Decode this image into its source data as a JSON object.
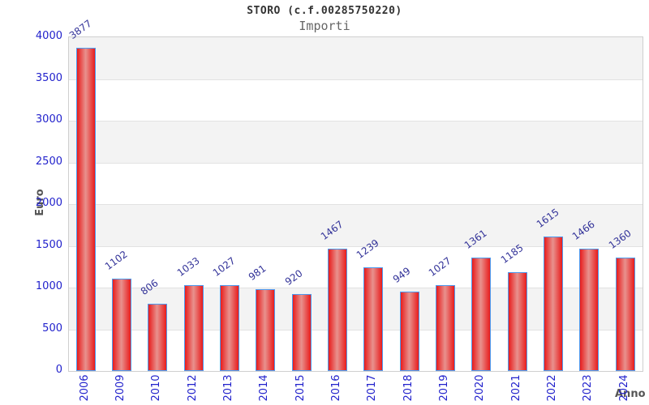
{
  "chart": {
    "title": "STORO (c.f.00285750220)",
    "subtitle": "Importi",
    "ylabel": "Euro",
    "xlabel": "Anno"
  },
  "chart_data": {
    "type": "bar",
    "title": "STORO (c.f.00285750220)",
    "subtitle": "Importi",
    "xlabel": "Anno",
    "ylabel": "Euro",
    "categories": [
      "2006",
      "2009",
      "2010",
      "2012",
      "2013",
      "2014",
      "2015",
      "2016",
      "2017",
      "2018",
      "2019",
      "2020",
      "2021",
      "2022",
      "2023",
      "2024"
    ],
    "values": [
      3877,
      1102,
      806,
      1033,
      1027,
      981,
      920,
      1467,
      1239,
      949,
      1027,
      1361,
      1185,
      1615,
      1466,
      1360
    ],
    "ylim": [
      0,
      4000
    ],
    "yticks": [
      0,
      500,
      1000,
      1500,
      2000,
      2500,
      3000,
      3500,
      4000
    ],
    "grid": "alternating-horizontal-bands",
    "legend": "none",
    "colors": {
      "bar_fill_edge": "#e81c1c",
      "bar_fill_center": "#e8928e",
      "bar_border": "#4d9bf0",
      "tick_label": "#2222cc",
      "value_label": "#333399",
      "axis_title": "#555555",
      "band": "#f3f3f3",
      "plot_border": "#cfcfcf"
    }
  }
}
